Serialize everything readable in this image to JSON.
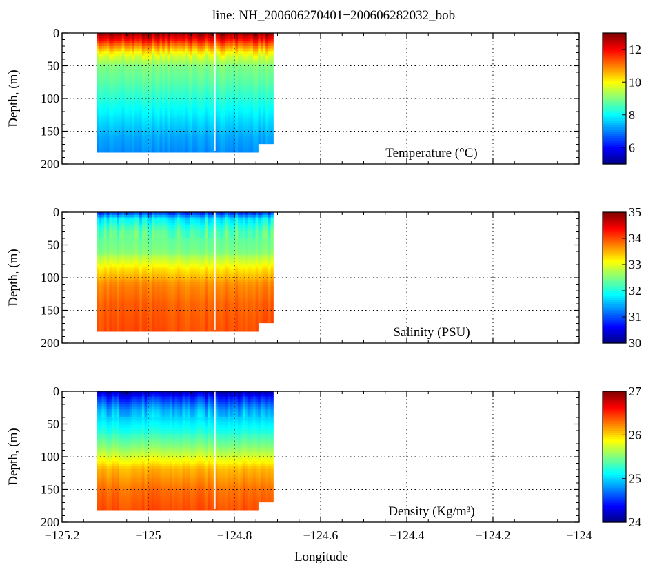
{
  "title": "line: NH_200606270401−200606282032_bob",
  "xlabel": "Longitude",
  "x_ticks": [
    "−125.2",
    "−125",
    "−124.8",
    "−124.6",
    "−124.4",
    "−124.2",
    "−124"
  ],
  "y_ticks": [
    "0",
    "50",
    "100",
    "150",
    "200"
  ],
  "chart_data": [
    {
      "type": "heatmap",
      "variable": "Temperature",
      "label": "Temperature (°C)",
      "ylabel": "Depth, (m)",
      "xlim": [
        -125.2,
        -124.0
      ],
      "ylim": [
        200,
        0
      ],
      "y_axis": "depth increasing downward",
      "grid": true,
      "colormap": "jet",
      "color_range": [
        5,
        13
      ],
      "colorbar_ticks": [
        "6",
        "8",
        "10",
        "12"
      ],
      "section": {
        "lon_start": -125.12,
        "lon_end": -124.71,
        "max_depth": 182
      },
      "profile": [
        {
          "depth": 0,
          "value": 12.8
        },
        {
          "depth": 15,
          "value": 11.5
        },
        {
          "depth": 30,
          "value": 10.0
        },
        {
          "depth": 50,
          "value": 9.0
        },
        {
          "depth": 75,
          "value": 8.7
        },
        {
          "depth": 100,
          "value": 8.3
        },
        {
          "depth": 130,
          "value": 7.8
        },
        {
          "depth": 160,
          "value": 7.3
        },
        {
          "depth": 182,
          "value": 7.1
        }
      ]
    },
    {
      "type": "heatmap",
      "variable": "Salinity",
      "label": "Salinity (PSU)",
      "ylabel": "Depth, (m)",
      "xlim": [
        -125.2,
        -124.0
      ],
      "ylim": [
        200,
        0
      ],
      "y_axis": "depth increasing downward",
      "grid": true,
      "colormap": "jet",
      "color_range": [
        30,
        35
      ],
      "colorbar_ticks": [
        "30",
        "31",
        "32",
        "33",
        "34",
        "35"
      ],
      "section": {
        "lon_start": -125.12,
        "lon_end": -124.71,
        "max_depth": 182
      },
      "profile": [
        {
          "depth": 0,
          "value": 30.8
        },
        {
          "depth": 10,
          "value": 31.8
        },
        {
          "depth": 30,
          "value": 32.3
        },
        {
          "depth": 60,
          "value": 32.5
        },
        {
          "depth": 85,
          "value": 33.2
        },
        {
          "depth": 110,
          "value": 33.7
        },
        {
          "depth": 140,
          "value": 33.9
        },
        {
          "depth": 182,
          "value": 34.0
        }
      ]
    },
    {
      "type": "heatmap",
      "variable": "Density",
      "label": "Density (Kg/m³)",
      "ylabel": "Depth, (m)",
      "xlim": [
        -125.2,
        -124.0
      ],
      "ylim": [
        200,
        0
      ],
      "y_axis": "depth increasing downward",
      "grid": true,
      "colormap": "jet",
      "color_range": [
        24,
        27
      ],
      "colorbar_ticks": [
        "24",
        "25",
        "26",
        "27"
      ],
      "section": {
        "lon_start": -125.12,
        "lon_end": -124.71,
        "max_depth": 182
      },
      "profile": [
        {
          "depth": 0,
          "value": 24.1
        },
        {
          "depth": 10,
          "value": 24.5
        },
        {
          "depth": 30,
          "value": 24.9
        },
        {
          "depth": 60,
          "value": 25.2
        },
        {
          "depth": 90,
          "value": 25.6
        },
        {
          "depth": 120,
          "value": 26.1
        },
        {
          "depth": 150,
          "value": 26.3
        },
        {
          "depth": 182,
          "value": 26.4
        }
      ]
    }
  ]
}
